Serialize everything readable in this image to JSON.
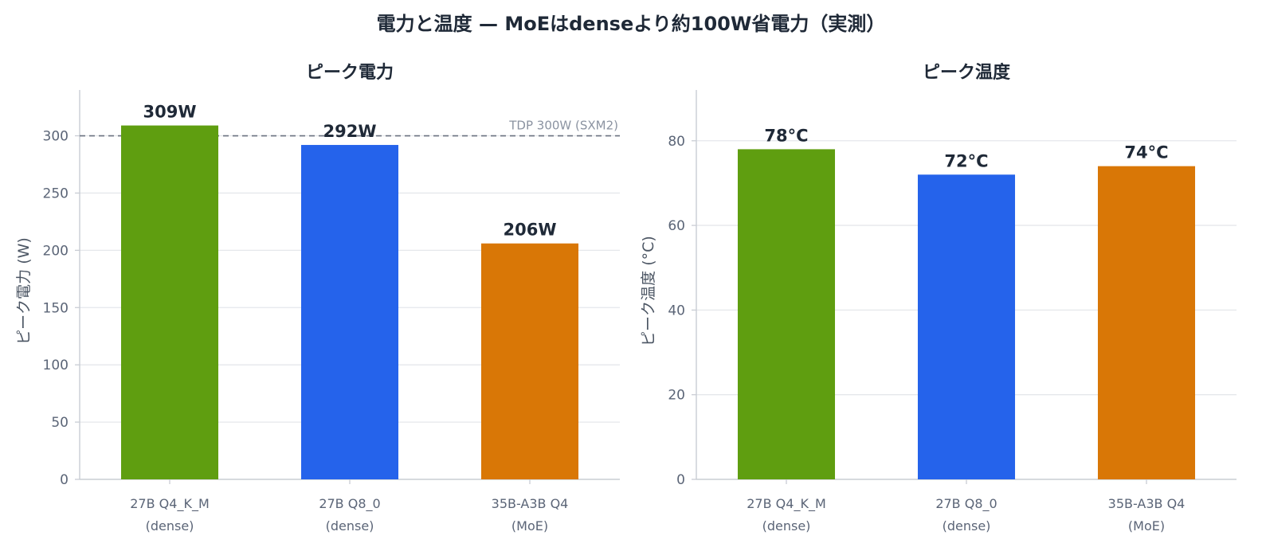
{
  "title": "電力と温度 — MoEはdenseより約100W省電力（実測）",
  "colors": {
    "dense_q4": "#5f9e10",
    "dense_q8": "#2563eb",
    "moe": "#d97706",
    "grid": "#e5e7eb",
    "axis": "#c9cdd4",
    "ref_line": "#6b7280"
  },
  "chart_data": [
    {
      "type": "bar",
      "title": "ピーク電力",
      "ylabel": "ピーク電力 (W)",
      "ylim": [
        0,
        340
      ],
      "yticks": [
        0,
        50,
        100,
        150,
        200,
        250,
        300
      ],
      "categories": [
        [
          "27B Q4_K_M",
          "(dense)"
        ],
        [
          "27B Q8_0",
          "(dense)"
        ],
        [
          "35B-A3B Q4",
          "(MoE)"
        ]
      ],
      "values": [
        309,
        292,
        206
      ],
      "value_labels": [
        "309W",
        "292W",
        "206W"
      ],
      "reference_line": {
        "value": 300,
        "label": "TDP 300W (SXM2)",
        "style": "dashed"
      },
      "grid": "horizontal"
    },
    {
      "type": "bar",
      "title": "ピーク温度",
      "ylabel": "ピーク温度 (°C)",
      "ylim": [
        0,
        92
      ],
      "yticks": [
        0,
        20,
        40,
        60,
        80
      ],
      "categories": [
        [
          "27B Q4_K_M",
          "(dense)"
        ],
        [
          "27B Q8_0",
          "(dense)"
        ],
        [
          "35B-A3B Q4",
          "(MoE)"
        ]
      ],
      "values": [
        78,
        72,
        74
      ],
      "value_labels": [
        "78°C",
        "72°C",
        "74°C"
      ],
      "grid": "horizontal"
    }
  ]
}
